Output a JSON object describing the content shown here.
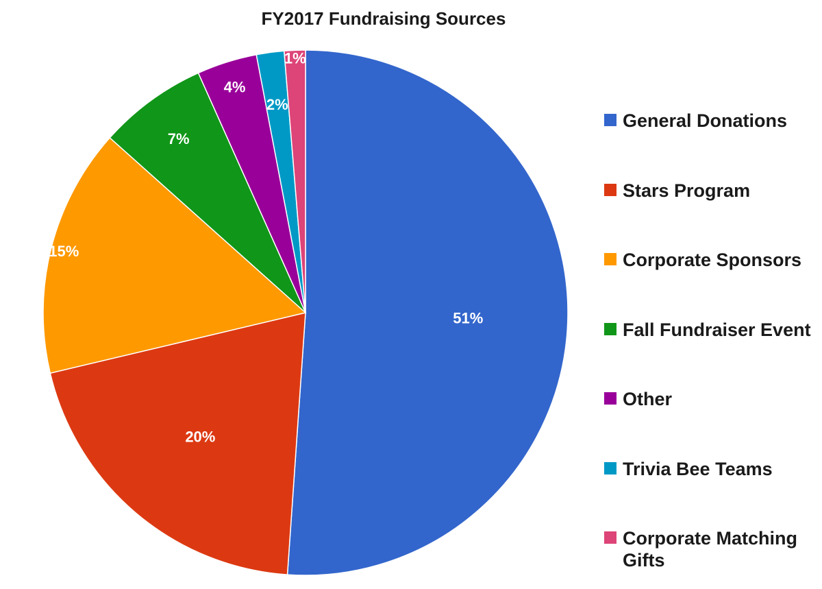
{
  "chart_data": {
    "type": "pie",
    "title": "FY2017 Fundraising Sources",
    "categories": [
      "General Donations",
      "Stars Program",
      "Corporate Sponsors",
      "Fall Fundraiser Event",
      "Other",
      "Trivia Bee Teams",
      "Corporate Matching Gifts"
    ],
    "values": [
      51.1,
      20.2,
      15.3,
      6.7,
      3.7,
      1.7,
      1.3
    ],
    "labels": [
      "51%",
      "20%",
      "15%",
      "7%",
      "4%",
      "2%",
      "1%"
    ],
    "colors": [
      "#3366cc",
      "#dc3912",
      "#ff9900",
      "#109618",
      "#990099",
      "#0099c6",
      "#dd4477"
    ],
    "legend_position": "right",
    "start_angle": "12 o'clock",
    "direction": "clockwise"
  }
}
